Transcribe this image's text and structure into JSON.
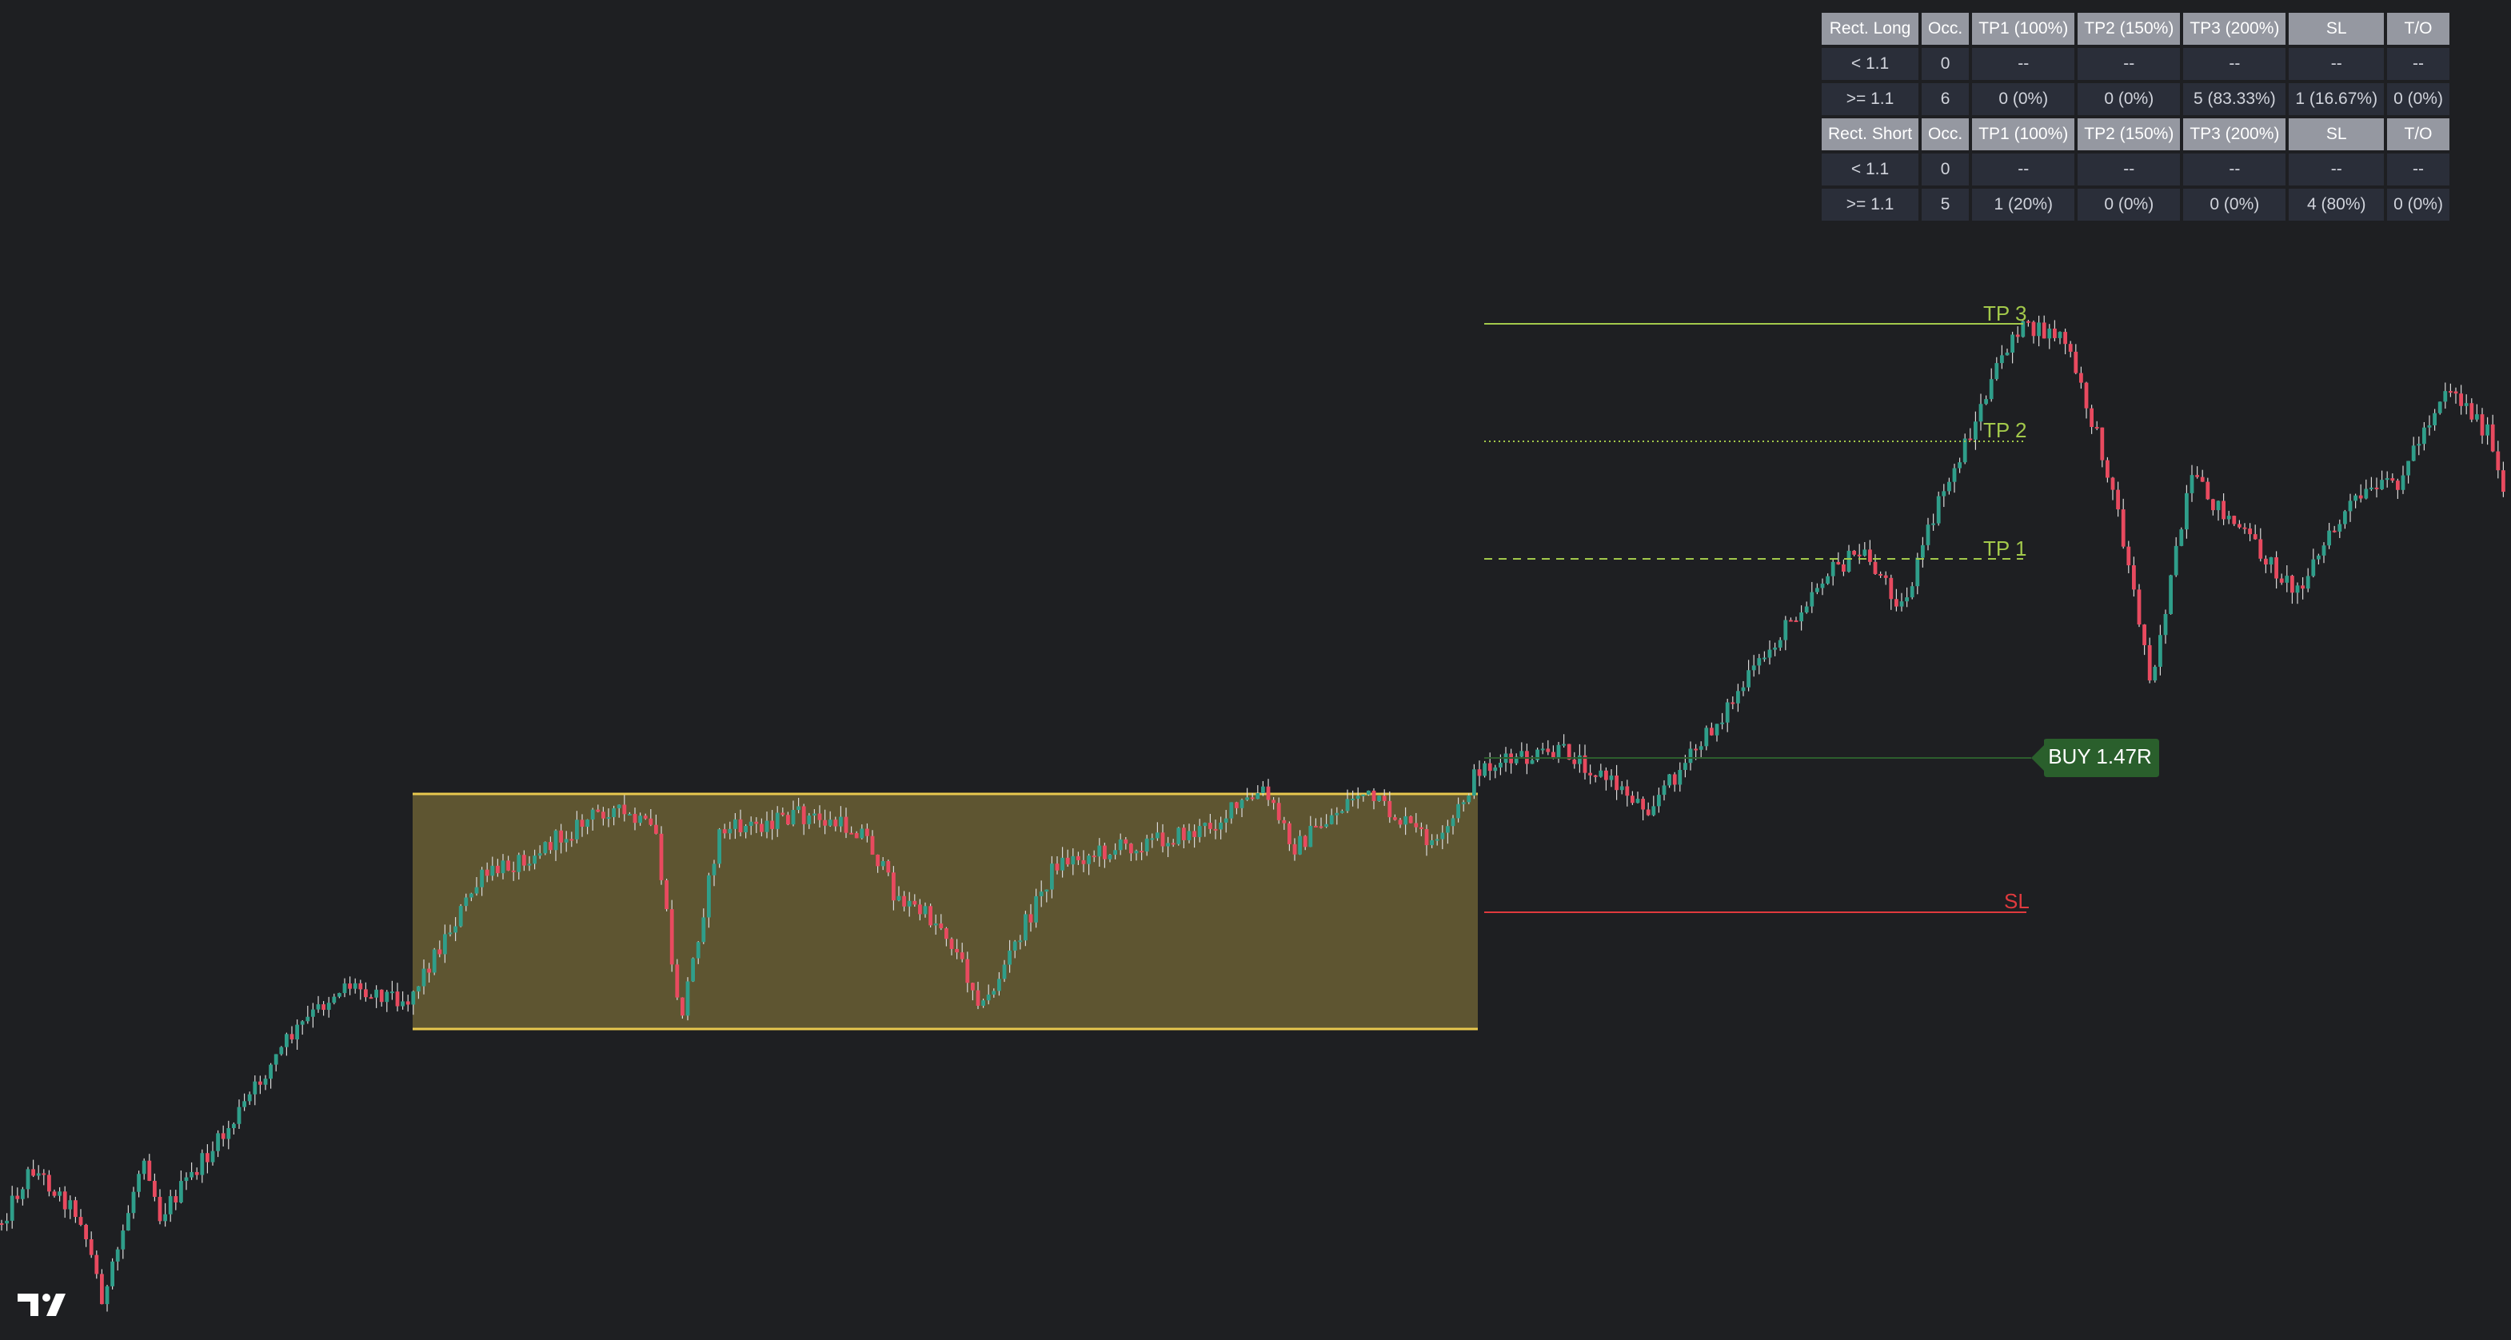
{
  "table": {
    "sections": [
      {
        "header": [
          "Rect. Long",
          "Occ.",
          "TP1 (100%)",
          "TP2 (150%)",
          "TP3 (200%)",
          "SL",
          "T/O"
        ],
        "rows": [
          [
            "< 1.1",
            "0",
            "--",
            "--",
            "--",
            "--",
            "--"
          ],
          [
            ">= 1.1",
            "6",
            "0 (0%)",
            "0 (0%)",
            "5 (83.33%)",
            "1 (16.67%)",
            "0 (0%)"
          ]
        ]
      },
      {
        "header": [
          "Rect. Short",
          "Occ.",
          "TP1 (100%)",
          "TP2 (150%)",
          "TP3 (200%)",
          "SL",
          "T/O"
        ],
        "rows": [
          [
            "< 1.1",
            "0",
            "--",
            "--",
            "--",
            "--",
            "--"
          ],
          [
            ">= 1.1",
            "5",
            "1 (20%)",
            "0 (0%)",
            "0 (0%)",
            "4 (80%)",
            "0 (0%)"
          ]
        ]
      }
    ]
  },
  "levels": {
    "tp3": "TP 3",
    "tp2": "TP 2",
    "tp1": "TP 1",
    "sl": "SL",
    "entry": "BUY 1.47R"
  }
}
